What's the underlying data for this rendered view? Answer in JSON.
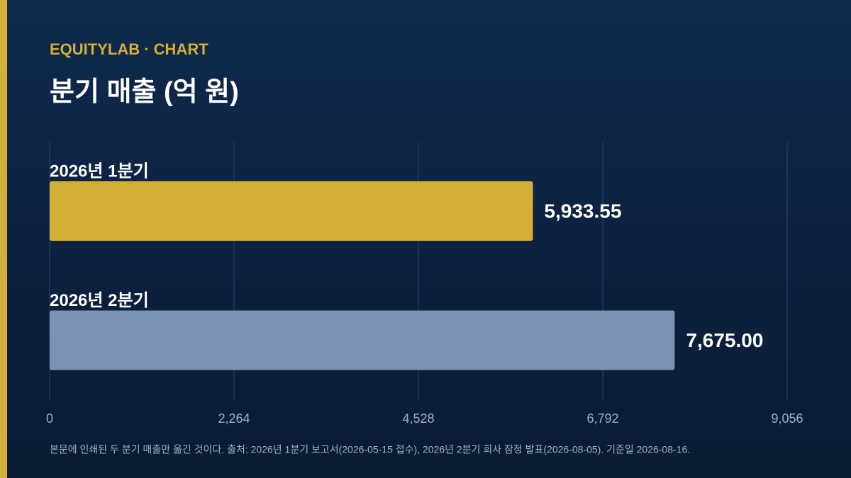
{
  "header": "EQUITYLAB · CHART",
  "chart_data": {
    "type": "bar",
    "orientation": "horizontal",
    "title": "분기 매출 (억 원)",
    "categories": [
      "2026년 1분기",
      "2026년 2분기"
    ],
    "values": [
      5933.55,
      7675.0
    ],
    "value_labels": [
      "5,933.55",
      "7,675.00"
    ],
    "colors": [
      "#d4af37",
      "#7b93b5"
    ],
    "xlim": [
      0,
      9056
    ],
    "xticks": [
      0,
      {
        "value": 2264,
        "label": "2,264"
      },
      {
        "value": 4528,
        "label": "4,528"
      },
      {
        "value": 6792,
        "label": "6,792"
      },
      {
        "value": 9056,
        "label": "9,056"
      }
    ],
    "grid": true
  },
  "footnote": "본문에 인쇄된 두 분기 매출만 옮긴 것이다. 출처: 2026년 1분기 보고서(2026-05-15 접수), 2026년 2분기 회사 잠정 발표(2026-08-05). 기준일 2026-08-16."
}
